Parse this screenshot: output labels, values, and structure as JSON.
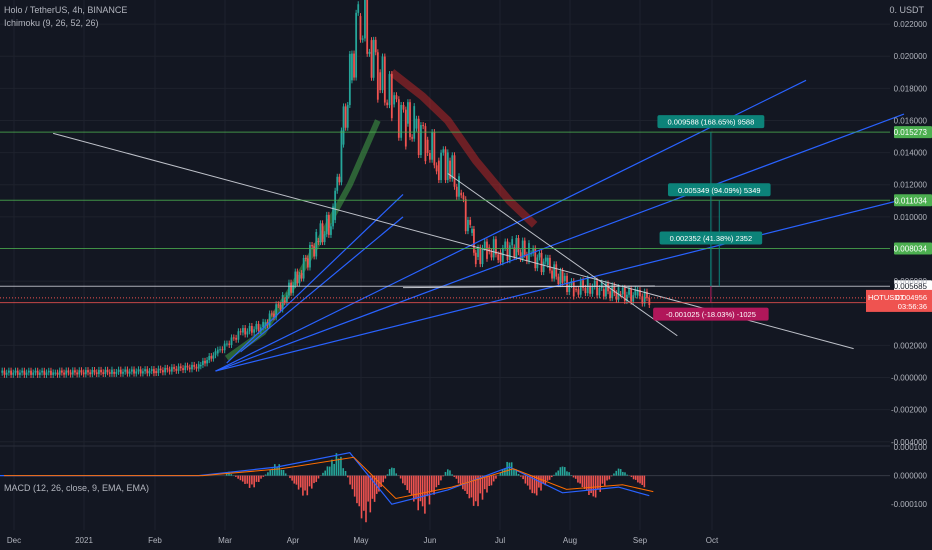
{
  "header": {
    "title": "Holo / TetherUS, 4h, BINANCE",
    "indicator1": "Ichimoku (9, 26, 52, 26)",
    "indicator2": "MACD (12, 26, close, 9, EMA, EMA)",
    "currency": "0. USDT"
  },
  "colors": {
    "background": "#131722",
    "grid": "#1e222d",
    "up": "#26a69a",
    "down": "#ef5350",
    "ichimoku_lead": "#43a047",
    "ichimoku_lag": "#c62828",
    "fan": "#2962ff",
    "trend": "#d1d4dc",
    "level": "#4caf50",
    "measure": "#0c8379",
    "measure_neg": "#b1175a",
    "price_tag": "#ef5350",
    "macd_line": "#2962ff",
    "signal_line": "#ff6d00",
    "hist_up": "#26a69a",
    "hist_down": "#ef5350"
  },
  "chart_data": [
    {
      "type": "candlestick",
      "symbol": "HOTUSDT",
      "timeframe": "4h",
      "x_axis": {
        "labels": [
          "Dec",
          "2021",
          "Feb",
          "Mar",
          "Apr",
          "May",
          "Jun",
          "Jul",
          "Aug",
          "Sep",
          "Oct"
        ],
        "range": [
          "2020-12-01",
          "2021-10-15"
        ]
      },
      "y_axis": {
        "ticks": [
          "0.022000",
          "0.020000",
          "0.018000",
          "0.016000",
          "0.014000",
          "0.012000",
          "0.010000",
          "0.006000",
          "0.002000",
          "-0.000000",
          "-0.002000",
          "-0.004000"
        ],
        "ylim": [
          -0.0042,
          0.0235
        ]
      },
      "approx_close_path": {
        "dates": [
          "2020-12-01",
          "2020-12-20",
          "2021-01-10",
          "2021-01-25",
          "2021-02-10",
          "2021-02-16",
          "2021-02-25",
          "2021-03-05",
          "2021-03-12",
          "2021-03-18",
          "2021-03-24",
          "2021-03-30",
          "2021-04-02",
          "2021-04-05",
          "2021-04-08",
          "2021-04-12",
          "2021-04-15",
          "2021-04-20",
          "2021-04-25",
          "2021-04-28",
          "2021-05-02",
          "2021-05-06",
          "2021-05-10",
          "2021-05-14",
          "2021-05-18",
          "2021-05-20",
          "2021-05-24",
          "2021-05-28",
          "2021-06-02",
          "2021-06-08",
          "2021-06-14",
          "2021-06-20",
          "2021-06-24",
          "2021-06-29",
          "2021-07-04",
          "2021-07-10",
          "2021-07-16",
          "2021-07-21"
        ],
        "values": [
          0.0003,
          0.0003,
          0.00035,
          0.0004,
          0.0007,
          0.0015,
          0.0028,
          0.0032,
          0.0048,
          0.0065,
          0.0085,
          0.0098,
          0.0145,
          0.0185,
          0.0225,
          0.021,
          0.019,
          0.017,
          0.0158,
          0.0155,
          0.0148,
          0.0135,
          0.0135,
          0.0115,
          0.009,
          0.0075,
          0.0081,
          0.0078,
          0.0081,
          0.0077,
          0.007,
          0.006,
          0.0055,
          0.0057,
          0.0055,
          0.0052,
          0.0051,
          0.0049
        ]
      },
      "ichimoku": {
        "lead_span_a_path": {
          "dates": [
            "2021-02-20",
            "2021-03-05",
            "2021-03-15",
            "2021-03-25",
            "2021-04-05",
            "2021-04-15"
          ],
          "values": [
            0.0012,
            0.0028,
            0.0055,
            0.0085,
            0.012,
            0.016
          ]
        },
        "cloud_down_path": {
          "dates": [
            "2021-04-20",
            "2021-05-01",
            "2021-05-10",
            "2021-05-20",
            "2021-06-01",
            "2021-06-10"
          ],
          "values": [
            0.019,
            0.0175,
            0.016,
            0.0135,
            0.011,
            0.0095
          ]
        }
      },
      "horizontal_levels": [
        {
          "value": 0.015273,
          "label": "0.015273",
          "color": "#4caf50"
        },
        {
          "value": 0.011034,
          "label": "0.011034",
          "color": "#4caf50"
        },
        {
          "value": 0.008034,
          "label": "0.008034",
          "color": "#4caf50"
        },
        {
          "value": 0.005685,
          "label": "0.005685",
          "color": "#d1d4dc"
        },
        {
          "value": 0.00466,
          "label": "0.004660",
          "color": "#ef5350"
        }
      ],
      "last_price": {
        "symbol": "HOTUSDT",
        "price": "0.004956",
        "countdown": "03:56:36"
      },
      "measurements": [
        {
          "text": "0.009588 (168.65%) 9588",
          "start_date": "2021-08-12",
          "from": 0.005685,
          "to": 0.015273,
          "color": "#0c8379"
        },
        {
          "text": "0.005349 (94.09%) 5349",
          "start_date": "2021-08-15",
          "from": 0.005685,
          "to": 0.011034,
          "color": "#0c8379"
        },
        {
          "text": "0.002352 (41.38%) 2352",
          "start_date": "2021-08-12",
          "from": 0.005685,
          "to": 0.008034,
          "color": "#0c8379"
        },
        {
          "text": "-0.001025 (-18.03%) -1025",
          "start_date": "2021-08-12",
          "from": 0.005685,
          "to": 0.00466,
          "color": "#b1175a"
        }
      ],
      "fan_lines": [
        {
          "from": [
            "2021-02-16",
            0.0004
          ],
          "to": [
            "2021-09-15",
            0.0185
          ]
        },
        {
          "from": [
            "2021-02-16",
            0.0004
          ],
          "to": [
            "2021-10-20",
            0.0164
          ]
        },
        {
          "from": [
            "2021-02-16",
            0.0004
          ],
          "to": [
            "2021-10-20",
            0.0111
          ]
        },
        {
          "from": [
            "2021-02-20",
            0.0009
          ],
          "to": [
            "2021-04-24",
            0.0114
          ]
        },
        {
          "from": [
            "2021-02-25",
            0.0016
          ],
          "to": [
            "2021-04-24",
            0.01
          ]
        }
      ],
      "trend_lines": [
        {
          "from": [
            "2020-12-20",
            0.0152
          ],
          "to": [
            "2021-10-02",
            0.0018
          ]
        },
        {
          "from": [
            "2021-05-10",
            0.0127
          ],
          "to": [
            "2021-07-31",
            0.0026
          ]
        },
        {
          "from": [
            "2021-04-24",
            0.0056
          ],
          "to": [
            "2021-07-23",
            0.0057
          ]
        }
      ]
    },
    {
      "type": "macd",
      "title": "MACD (12, 26, close, 9, EMA, EMA)",
      "y_axis": {
        "ticks": [
          "0.000100",
          "0.000000",
          "-0.000100"
        ],
        "ylim": [
          -0.00019,
          0.0001
        ]
      },
      "approx_histogram": {
        "dates": [
          "2021-02-20",
          "2021-03-01",
          "2021-03-10",
          "2021-03-20",
          "2021-04-01",
          "2021-04-10",
          "2021-04-20",
          "2021-05-01",
          "2021-05-10",
          "2021-05-20",
          "2021-06-01",
          "2021-06-10",
          "2021-06-20",
          "2021-07-01",
          "2021-07-10",
          "2021-07-20"
        ],
        "values": [
          2e-05,
          -5e-05,
          5e-05,
          -8e-05,
          9e-05,
          -0.00018,
          4e-05,
          -0.00015,
          3e-05,
          -0.00012,
          6e-05,
          -8e-05,
          4e-05,
          -9e-05,
          3e-05,
          -5e-05
        ]
      },
      "approx_macd_line": {
        "dates": [
          "2020-12-01",
          "2021-02-10",
          "2021-03-10",
          "2021-04-05",
          "2021-04-20",
          "2021-05-10",
          "2021-06-01",
          "2021-06-20",
          "2021-07-10",
          "2021-07-21"
        ],
        "values": [
          0,
          0,
          3e-05,
          8e-05,
          -0.0001,
          -5e-05,
          3e-05,
          -6e-05,
          -4e-05,
          -7e-05
        ]
      }
    }
  ]
}
